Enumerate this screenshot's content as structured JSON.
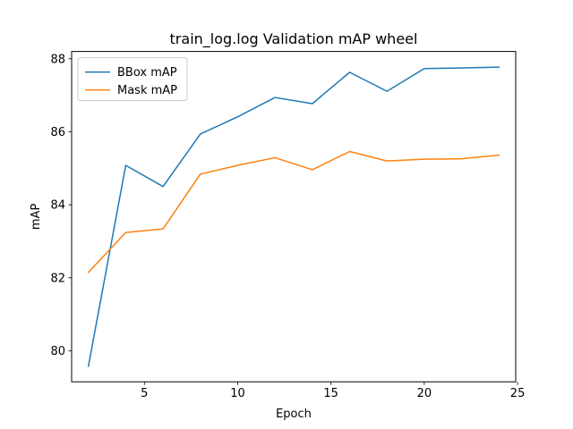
{
  "chart_data": {
    "type": "line",
    "title": "train_log.log Validation mAP wheel",
    "xlabel": "Epoch",
    "ylabel": "mAP",
    "xlim": [
      1.1,
      24.9
    ],
    "ylim": [
      79.15,
      88.2
    ],
    "xticks": [
      5,
      10,
      15,
      20,
      25
    ],
    "yticks": [
      80,
      82,
      84,
      86,
      88
    ],
    "grid": false,
    "legend_position": "upper-left",
    "x": [
      2,
      4,
      6,
      8,
      10,
      12,
      14,
      16,
      18,
      20,
      22,
      24
    ],
    "series": [
      {
        "name": "BBox mAP",
        "color": "#1f77b4",
        "values": [
          79.58,
          85.08,
          84.5,
          85.94,
          86.41,
          86.94,
          86.77,
          87.63,
          87.11,
          87.73,
          87.75,
          87.77
        ]
      },
      {
        "name": "Mask mAP",
        "color": "#ff7f0e",
        "values": [
          82.15,
          83.24,
          83.34,
          84.84,
          85.08,
          85.29,
          84.96,
          85.46,
          85.2,
          85.25,
          85.26,
          85.36
        ]
      }
    ]
  }
}
